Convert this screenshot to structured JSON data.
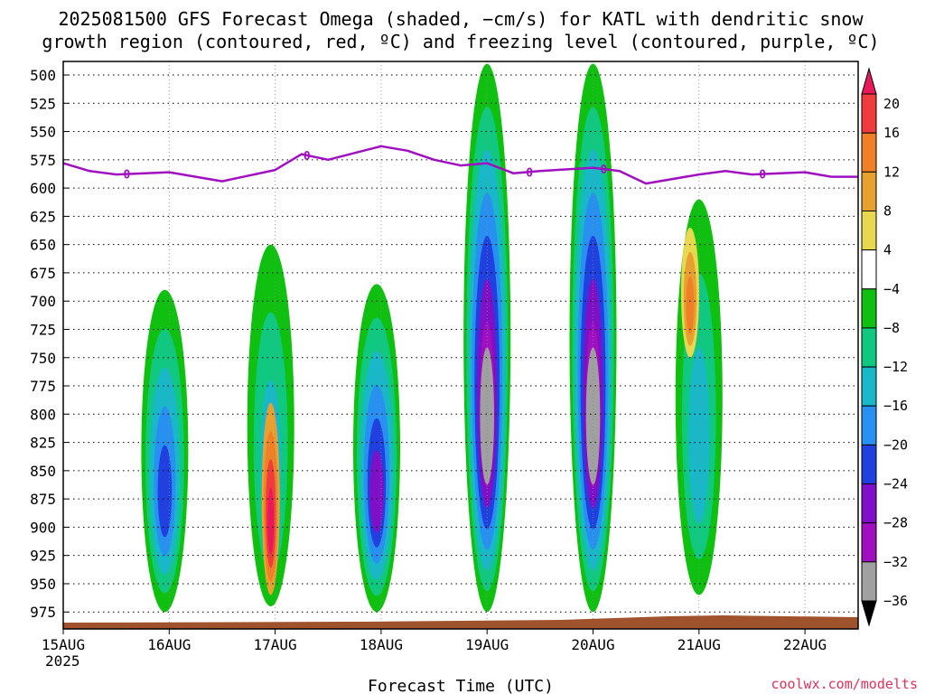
{
  "chart_data": {
    "type": "heatmap",
    "title": "2025081500 GFS Forecast Omega (shaded, −cm/s) for KATL with dendritic snow",
    "subtitle": "growth region (contoured, red, ºC) and freezing level (contoured, purple, ºC)",
    "xlabel": "Forecast Time (UTC)",
    "ylabel": "",
    "credit": "coolwx.com/modelts",
    "x_ticks": [
      "15AUG",
      "16AUG",
      "17AUG",
      "18AUG",
      "19AUG",
      "20AUG",
      "21AUG",
      "22AUG"
    ],
    "x_tick_sub": "2025",
    "xlim": [
      "2025-08-15 00Z",
      "2025-08-22 12Z"
    ],
    "y_ticks": [
      500,
      525,
      550,
      575,
      600,
      625,
      650,
      675,
      700,
      725,
      750,
      775,
      800,
      825,
      850,
      875,
      900,
      925,
      950,
      975
    ],
    "ylim": [
      488,
      990
    ],
    "y_inverted": true,
    "grid": true,
    "colorbar": {
      "levels": [
        "20",
        "16",
        "12",
        "8",
        "4",
        "−4",
        "−8",
        "−12",
        "−16",
        "−20",
        "−24",
        "−28",
        "−32",
        "−36"
      ],
      "colors": [
        "#e8185a",
        "#f03c3c",
        "#f08028",
        "#e8a030",
        "#e8d850",
        "#ffffff",
        "#10c010",
        "#10c880",
        "#18b8c8",
        "#2890f0",
        "#2040e0",
        "#8010c8",
        "#a010c0",
        "#a0a0a0",
        "#000000"
      ]
    },
    "freezing_level": {
      "label": "0",
      "color": "#a010c0",
      "points": [
        [
          "2025-08-15 00Z",
          578
        ],
        [
          "2025-08-15 06Z",
          585
        ],
        [
          "2025-08-15 12Z",
          588
        ],
        [
          "2025-08-16 00Z",
          586
        ],
        [
          "2025-08-16 06Z",
          590
        ],
        [
          "2025-08-16 12Z",
          594
        ],
        [
          "2025-08-17 00Z",
          584
        ],
        [
          "2025-08-17 06Z",
          570
        ],
        [
          "2025-08-17 12Z",
          575
        ],
        [
          "2025-08-18 00Z",
          563
        ],
        [
          "2025-08-18 06Z",
          567
        ],
        [
          "2025-08-18 12Z",
          575
        ],
        [
          "2025-08-18 18Z",
          580
        ],
        [
          "2025-08-19 00Z",
          578
        ],
        [
          "2025-08-19 06Z",
          587
        ],
        [
          "2025-08-19 12Z",
          585
        ],
        [
          "2025-08-20 00Z",
          582
        ],
        [
          "2025-08-20 06Z",
          585
        ],
        [
          "2025-08-20 12Z",
          596
        ],
        [
          "2025-08-21 00Z",
          588
        ],
        [
          "2025-08-21 06Z",
          585
        ],
        [
          "2025-08-21 12Z",
          588
        ],
        [
          "2025-08-22 00Z",
          586
        ],
        [
          "2025-08-22 06Z",
          590
        ],
        [
          "2025-08-22 12Z",
          590
        ]
      ]
    },
    "omega_cells": [
      {
        "time": "2025-08-15 23Z",
        "p_top": 690,
        "p_bot": 975,
        "levels": [
          -8,
          -12,
          -16,
          -20,
          -24
        ],
        "series": "ascent"
      },
      {
        "time": "2025-08-16 23Z",
        "p_top": 650,
        "p_bot": 970,
        "levels": [
          -8,
          -12,
          -16
        ],
        "series": "ascent"
      },
      {
        "time": "2025-08-16 23Z",
        "p_top": 790,
        "p_bot": 960,
        "levels": [
          8,
          12,
          16,
          20
        ],
        "series": "descent"
      },
      {
        "time": "2025-08-17 23Z",
        "p_top": 685,
        "p_bot": 975,
        "levels": [
          -8,
          -12,
          -16,
          -20,
          -24,
          -28
        ],
        "series": "ascent"
      },
      {
        "time": "2025-08-19 00Z",
        "p_top": 490,
        "p_bot": 975,
        "levels": [
          -8,
          -12,
          -16,
          -20,
          -24,
          -28,
          -32,
          -36
        ],
        "series": "ascent"
      },
      {
        "time": "2025-08-20 00Z",
        "p_top": 490,
        "p_bot": 975,
        "levels": [
          -8,
          -12,
          -16,
          -20,
          -24,
          -28,
          -32,
          -36
        ],
        "series": "ascent"
      },
      {
        "time": "2025-08-21 00Z",
        "p_top": 610,
        "p_bot": 960,
        "levels": [
          -8,
          -12,
          -16
        ],
        "series": "ascent"
      },
      {
        "time": "2025-08-20 22Z",
        "p_top": 635,
        "p_bot": 750,
        "levels": [
          4,
          8,
          12
        ],
        "series": "descent"
      }
    ]
  }
}
